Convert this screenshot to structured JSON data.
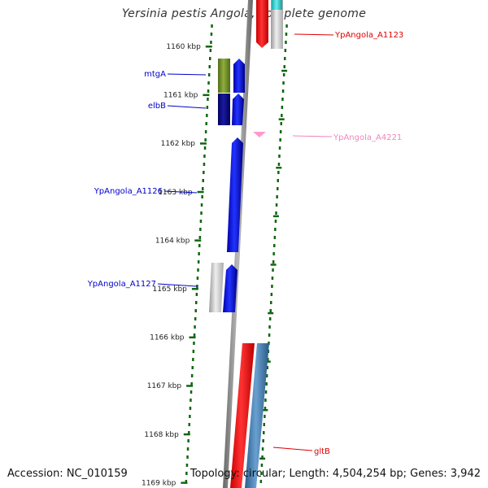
{
  "title": "Yersinia pestis Angola, complete genome",
  "accession": "Accession: NC_010159",
  "topology": "Topology: circular; Length: 4,504,254 bp; Genes: 3,942",
  "ruler": {
    "ticks": [
      {
        "kbp": 1160,
        "label": "1160 kbp"
      },
      {
        "kbp": 1161,
        "label": "1161 kbp"
      },
      {
        "kbp": 1162,
        "label": "1162 kbp"
      },
      {
        "kbp": 1163,
        "label": "1163 kbp"
      },
      {
        "kbp": 1164,
        "label": "1164 kbp"
      },
      {
        "kbp": 1165,
        "label": "1165 kbp"
      },
      {
        "kbp": 1166,
        "label": "1166 kbp"
      },
      {
        "kbp": 1167,
        "label": "1167 kbp"
      },
      {
        "kbp": 1168,
        "label": "1168 kbp"
      },
      {
        "kbp": 1169,
        "label": "1169 kbp"
      }
    ]
  },
  "genes": [
    {
      "label": "mtgA",
      "color": "#0000cc",
      "side": "left"
    },
    {
      "label": "elbB",
      "color": "#0000cc",
      "side": "left"
    },
    {
      "label": "YpAngola_A1126",
      "color": "#0000cc",
      "side": "left"
    },
    {
      "label": "YpAngola_A1127",
      "color": "#0000cc",
      "side": "left"
    },
    {
      "label": "YpAngola_A1123",
      "color": "#dd0000",
      "side": "right"
    },
    {
      "label": "YpAngola_A4221",
      "color": "#ee88bb",
      "side": "right"
    },
    {
      "label": "gltB",
      "color": "#dd0000",
      "side": "right"
    }
  ],
  "colors": {
    "tick": "#116611",
    "blue_gene": "#0000ee",
    "olive_gene": "#6b8e23",
    "navy_gene": "#000080",
    "red_gene": "#ee0000",
    "steel_gene": "#4682b4",
    "grey_gene": "#bbbbbb",
    "pink_gene": "#ff99cc",
    "cyan_gene": "#33cccc",
    "backbone": "#888888"
  }
}
